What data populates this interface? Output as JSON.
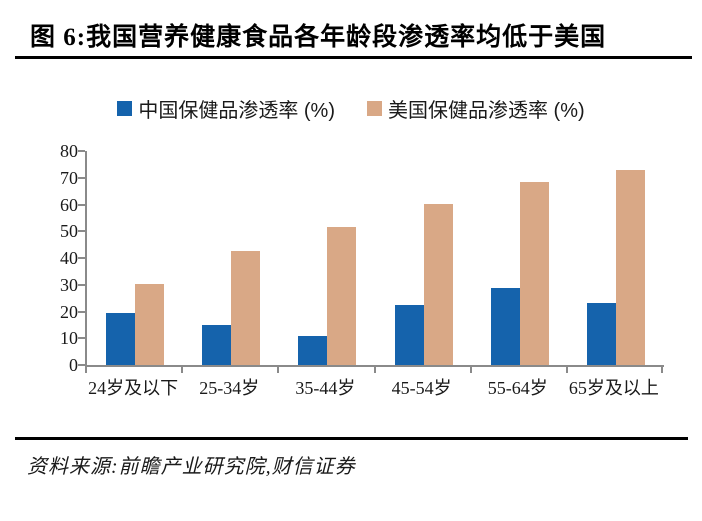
{
  "title": "图 6:我国营养健康食品各年龄段渗透率均低于美国",
  "source": "资料来源:前瞻产业研究院,财信证券",
  "colors": {
    "china_series": "#1563ac",
    "us_series": "#d9a886",
    "axis": "#8a8a8a",
    "rule": "#000000",
    "background": "#ffffff"
  },
  "legend": {
    "items": [
      {
        "label": "中国保健品渗透率 (%)",
        "color": "#1563ac"
      },
      {
        "label": "美国保健品渗透率 (%)",
        "color": "#d9a886"
      }
    ]
  },
  "chart_data": {
    "type": "bar",
    "title": "图 6:我国营养健康食品各年龄段渗透率均低于美国",
    "categories": [
      "24岁及以下",
      "25-34岁",
      "35-44岁",
      "45-54岁",
      "55-64岁",
      "65岁及以上"
    ],
    "series": [
      {
        "name": "中国保健品渗透率 (%)",
        "color": "#1563ac",
        "values": [
          19.5,
          15,
          11,
          22.3,
          28.8,
          23
        ]
      },
      {
        "name": "美国保健品渗透率 (%)",
        "color": "#d9a886",
        "values": [
          30.4,
          42.8,
          51.7,
          60.2,
          68.5,
          73
        ]
      }
    ],
    "xlabel": "",
    "ylabel": "",
    "ylim": [
      0,
      80
    ],
    "ytick_step": 10,
    "yticks": [
      0,
      10,
      20,
      30,
      40,
      50,
      60,
      70,
      80
    ],
    "grid": false,
    "legend_position": "top"
  }
}
